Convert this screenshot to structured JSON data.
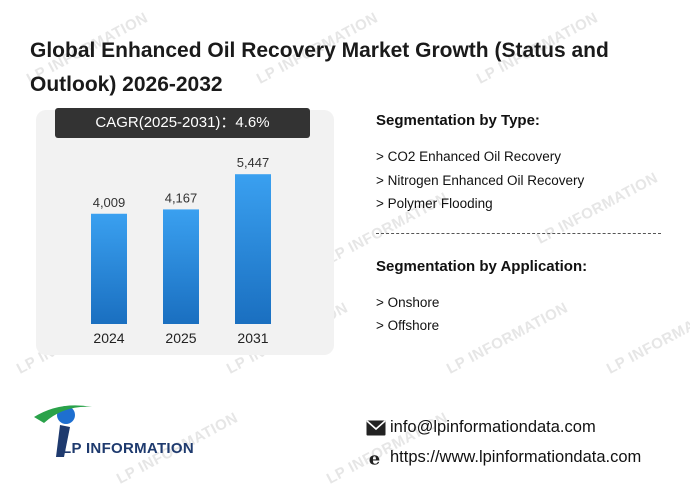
{
  "title": "Global Enhanced Oil Recovery Market Growth (Status and Outlook) 2026-2032",
  "cagr": {
    "label": "CAGR(2025-2031)：",
    "value": "4.6%"
  },
  "chart_data": {
    "type": "bar",
    "categories": [
      "2024",
      "2025",
      "2031"
    ],
    "values": [
      4009,
      4167,
      5447
    ],
    "value_labels": [
      "4,009",
      "4,167",
      "5,447"
    ],
    "ylim": [
      0,
      8000
    ],
    "grid": false,
    "bar_color_top": "#3aa0f0",
    "bar_color_bottom": "#1a6fc0"
  },
  "segmentation_type": {
    "heading": "Segmentation by Type:",
    "items": [
      "> CO2 Enhanced Oil Recovery",
      "> Nitrogen Enhanced Oil Recovery",
      "> Polymer Flooding"
    ]
  },
  "segmentation_application": {
    "heading": "Segmentation by Application:",
    "items": [
      "> Onshore",
      "> Offshore"
    ]
  },
  "logo": {
    "text": "LP INFORMATION"
  },
  "contact": {
    "email": "info@lpinformationdata.com",
    "website": "https://www.lpinformationdata.com",
    "email_icon": "mail-icon",
    "web_icon": "browser-e-icon"
  },
  "watermark": {
    "text": "LP INFORMATION"
  }
}
